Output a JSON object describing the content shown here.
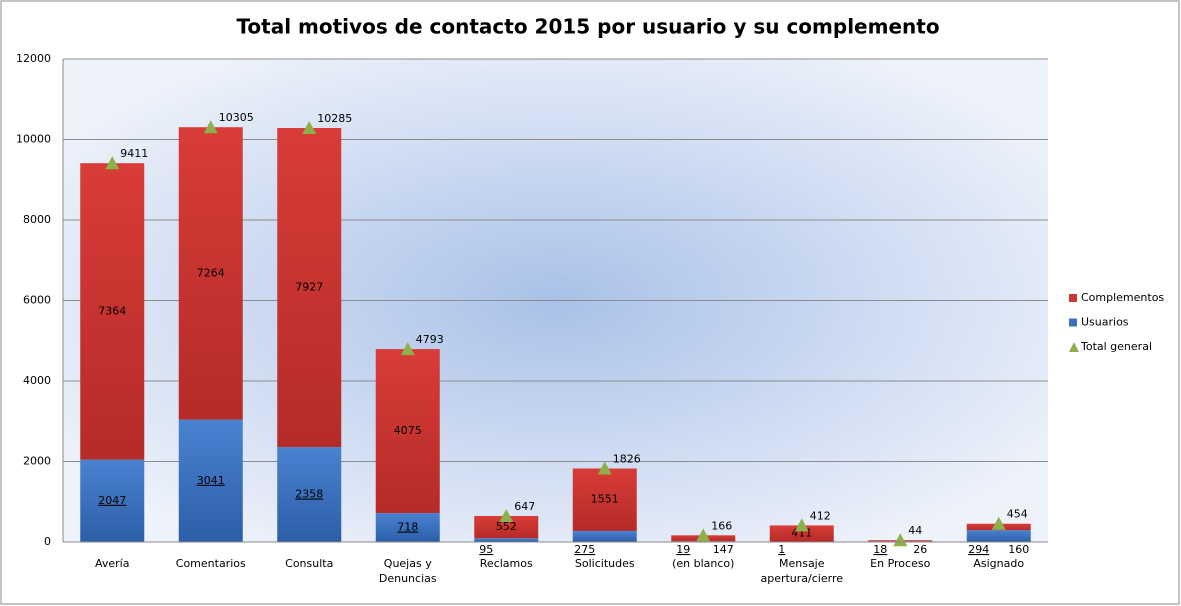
{
  "chart_data": {
    "type": "bar",
    "stacked": true,
    "title": "Total motivos de contacto 2015 por usuario y su complemento",
    "categories": [
      "Avería",
      "Comentarios",
      "Consulta",
      "Quejas y Denuncias",
      "Reclamos",
      "Solicitudes",
      "(en blanco)",
      "Mensaje apertura/cierre",
      "En Proceso",
      "Asignado"
    ],
    "series": [
      {
        "name": "Usuarios",
        "color": "#3b6fbd",
        "values": [
          2047,
          3041,
          2358,
          718,
          95,
          275,
          19,
          1,
          18,
          294
        ]
      },
      {
        "name": "Complementos",
        "color": "#cf3532",
        "values": [
          7364,
          7264,
          7927,
          4075,
          552,
          1551,
          147,
          411,
          26,
          160
        ]
      },
      {
        "name": "Total general",
        "type": "marker",
        "color": "#8db04a",
        "values": [
          9411,
          10305,
          10285,
          4793,
          647,
          1826,
          166,
          412,
          44,
          454
        ]
      }
    ],
    "ylim": [
      0,
      12000
    ],
    "yticks": [
      0,
      2000,
      4000,
      6000,
      8000,
      10000,
      12000
    ],
    "grid": true,
    "legend": "right"
  }
}
